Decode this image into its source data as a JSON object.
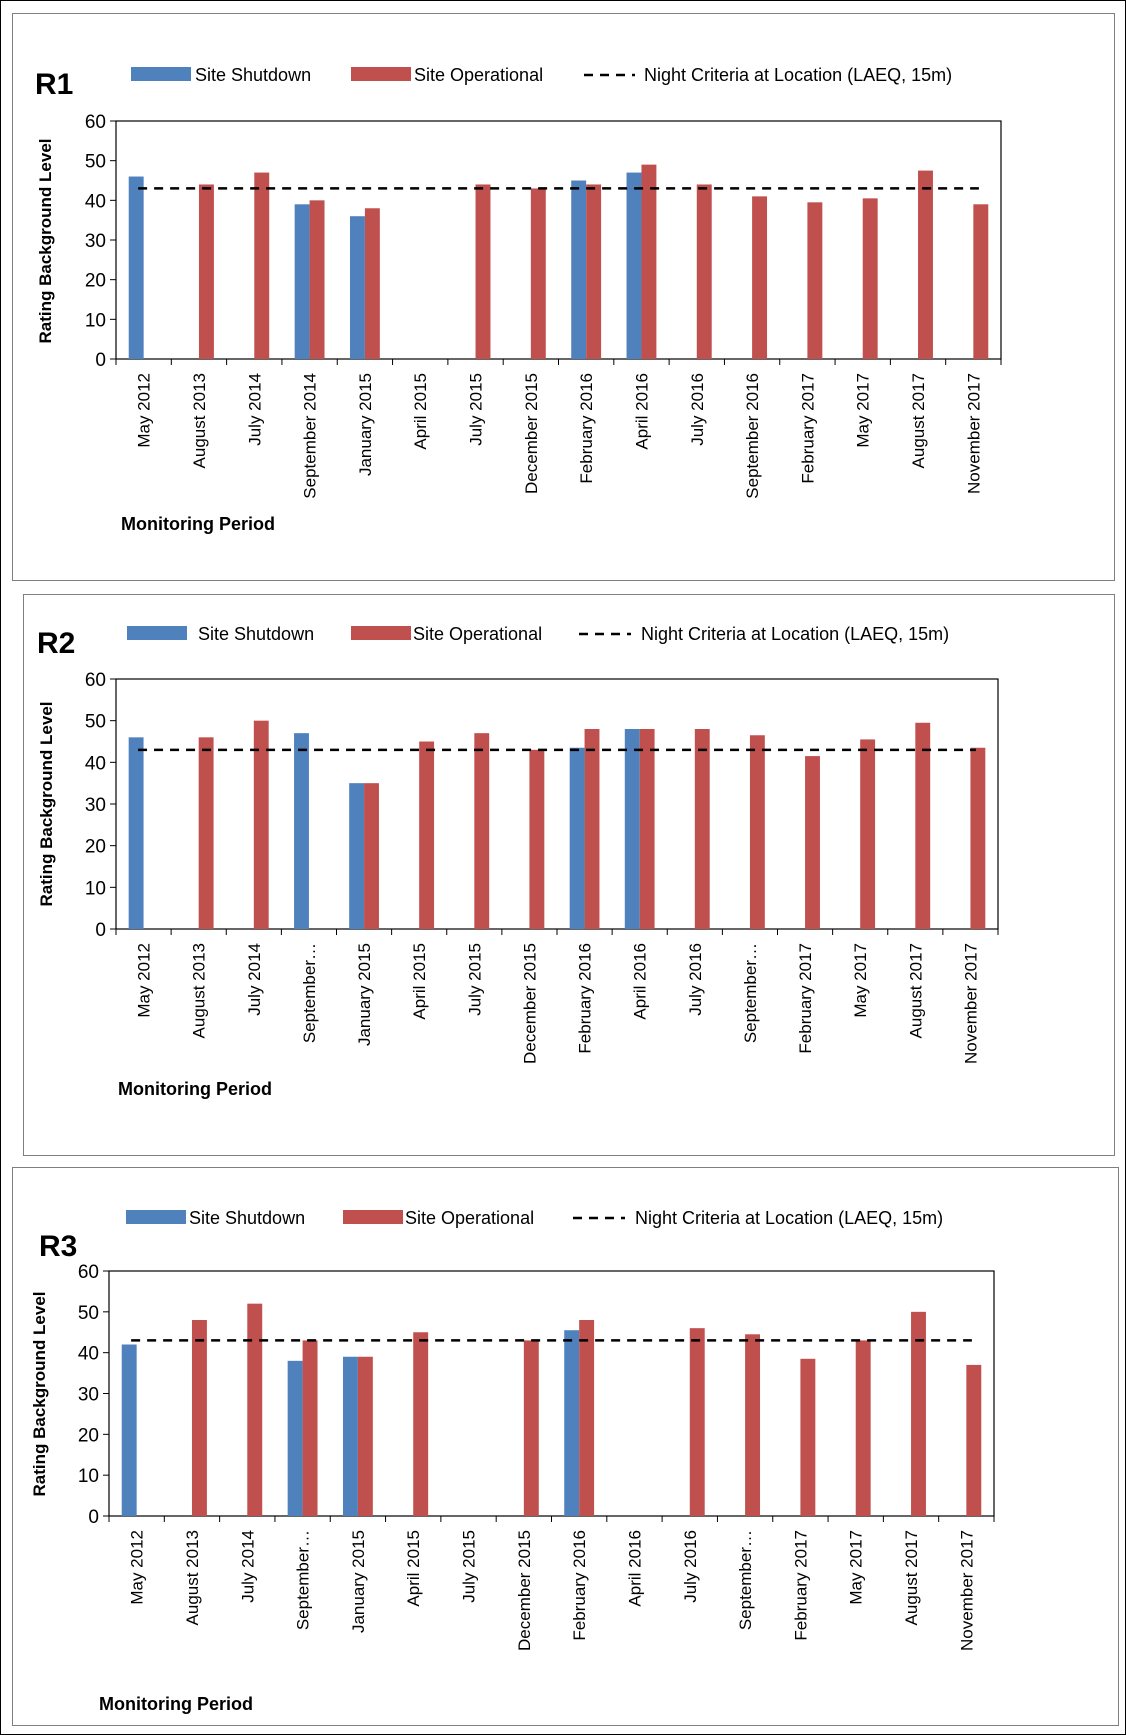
{
  "legend_labels": {
    "shutdown": "Site Shutdown",
    "operational": "Site Operational",
    "criteria": "Night Criteria at Location (LAEQ, 15m)"
  },
  "chart_data": [
    {
      "type": "bar",
      "title": "R1",
      "xlabel": "Monitoring Period",
      "ylabel": "Rating Background Level",
      "ylim": [
        0,
        60
      ],
      "yticks": [
        0,
        10,
        20,
        30,
        40,
        50,
        60
      ],
      "grid": false,
      "legend_position": "top",
      "categories": [
        "May 2012",
        "August 2013",
        "July 2014",
        "September 2014",
        "January 2015",
        "April 2015",
        "July 2015",
        "December 2015",
        "February 2016",
        "April 2016",
        "July 2016",
        "September 2016",
        "February 2017",
        "May 2017",
        "August 2017",
        "November 2017"
      ],
      "series": [
        {
          "name": "Site Shutdown",
          "color": "#4f81bd",
          "values": [
            46,
            null,
            null,
            39,
            36,
            null,
            null,
            null,
            45,
            47,
            null,
            null,
            null,
            null,
            null,
            null
          ]
        },
        {
          "name": "Site Operational",
          "color": "#c0504d",
          "values": [
            null,
            44,
            47,
            40,
            38,
            null,
            44,
            43,
            44,
            49,
            44,
            41,
            39.5,
            40.5,
            47.5,
            39
          ]
        }
      ],
      "reference_line": {
        "name": "Night Criteria at Location (LAEQ, 15m)",
        "value": 43
      }
    },
    {
      "type": "bar",
      "title": "R2",
      "xlabel": "Monitoring Period",
      "ylabel": "Rating Background Level",
      "ylim": [
        0,
        60
      ],
      "yticks": [
        0,
        10,
        20,
        30,
        40,
        50,
        60
      ],
      "grid": false,
      "legend_position": "top",
      "categories": [
        "May 2012",
        "August 2013",
        "July 2014",
        "September…",
        "January 2015",
        "April 2015",
        "July 2015",
        "December 2015",
        "February 2016",
        "April 2016",
        "July 2016",
        "September…",
        "February 2017",
        "May 2017",
        "August 2017",
        "November 2017"
      ],
      "series": [
        {
          "name": "Site Shutdown",
          "color": "#4f81bd",
          "values": [
            46,
            null,
            null,
            47,
            35,
            null,
            null,
            null,
            43.5,
            48,
            null,
            null,
            null,
            null,
            null,
            null
          ]
        },
        {
          "name": "Site Operational",
          "color": "#c0504d",
          "values": [
            null,
            46,
            50,
            null,
            35,
            45,
            47,
            43,
            48,
            48,
            48,
            46.5,
            41.5,
            45.5,
            49.5,
            43.5
          ]
        }
      ],
      "reference_line": {
        "name": "Night Criteria at Location (LAEQ, 15m)",
        "value": 43
      }
    },
    {
      "type": "bar",
      "title": "R3",
      "xlabel": "Monitoring Period",
      "ylabel": "Rating Background Level",
      "ylim": [
        0,
        60
      ],
      "yticks": [
        0,
        10,
        20,
        30,
        40,
        50,
        60
      ],
      "grid": false,
      "legend_position": "top",
      "categories": [
        "May 2012",
        "August 2013",
        "July 2014",
        "September…",
        "January 2015",
        "April 2015",
        "July 2015",
        "December 2015",
        "February 2016",
        "April 2016",
        "July 2016",
        "September…",
        "February 2017",
        "May 2017",
        "August 2017",
        "November 2017"
      ],
      "series": [
        {
          "name": "Site Shutdown",
          "color": "#4f81bd",
          "values": [
            42,
            null,
            null,
            38,
            39,
            null,
            null,
            null,
            45.5,
            null,
            null,
            null,
            null,
            null,
            null,
            null
          ]
        },
        {
          "name": "Site Operational",
          "color": "#c0504d",
          "values": [
            null,
            48,
            52,
            43,
            39,
            45,
            null,
            43,
            48,
            null,
            46,
            44.5,
            38.5,
            43,
            50,
            37
          ]
        }
      ],
      "reference_line": {
        "name": "Night Criteria at Location (LAEQ, 15m)",
        "value": 43
      }
    }
  ]
}
